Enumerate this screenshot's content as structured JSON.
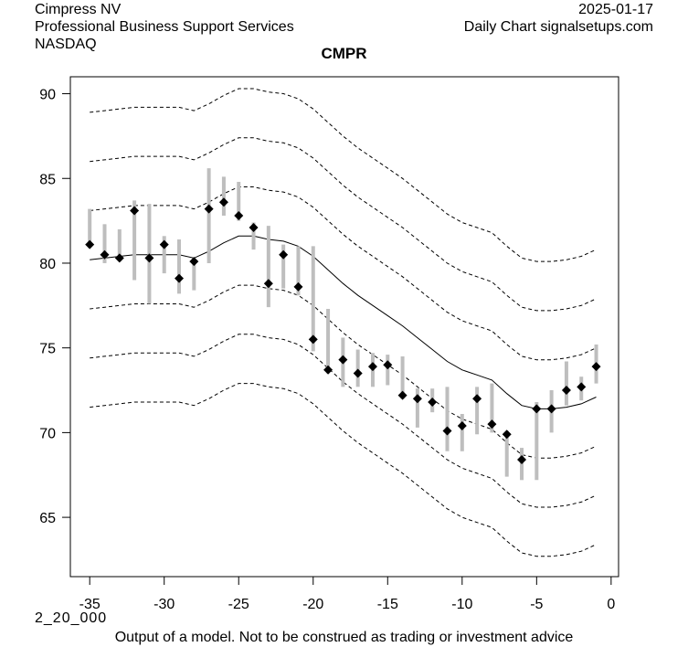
{
  "header": {
    "company": "Cimpress NV",
    "industry": "Professional Business Support Services",
    "exchange": "NASDAQ",
    "date": "2025-01-17",
    "source": "Daily Chart signalsetups.com"
  },
  "footer": {
    "code": "2_20_000",
    "disclaimer": "Output of a model. Not to be construed as trading or investment advice"
  },
  "colors": {
    "bar": "#bebebe",
    "marker": "#000000",
    "line": "#000000"
  },
  "chart_data": {
    "type": "line",
    "title": "CMPR",
    "xlabel": "",
    "ylabel": "",
    "xlim": [
      -36.3,
      0.5
    ],
    "ylim": [
      61.5,
      91.0
    ],
    "xticks": [
      -35,
      -30,
      -25,
      -20,
      -15,
      -10,
      -5,
      0
    ],
    "yticks": [
      65,
      70,
      75,
      80,
      85,
      90
    ],
    "grid": false,
    "legend": "none",
    "price_bars": {
      "x": [
        -35,
        -34,
        -33,
        -32,
        -31,
        -30,
        -29,
        -28,
        -27,
        -26,
        -25,
        -24,
        -23,
        -22,
        -21,
        -20,
        -19,
        -18,
        -17,
        -16,
        -15,
        -14,
        -13,
        -12,
        -11,
        -10,
        -9,
        -8,
        -7,
        -6,
        -5,
        -4,
        -3,
        -2,
        -1
      ],
      "high": [
        83.2,
        82.3,
        82.0,
        83.7,
        83.5,
        81.6,
        81.4,
        80.2,
        85.6,
        85.1,
        84.8,
        82.4,
        82.2,
        81.1,
        81.0,
        81.0,
        77.3,
        75.6,
        74.9,
        74.7,
        74.6,
        74.5,
        72.6,
        72.6,
        72.7,
        71.1,
        72.7,
        72.9,
        70.1,
        69.1,
        71.8,
        72.5,
        74.2,
        73.3,
        75.2
      ],
      "low": [
        80.9,
        80.0,
        80.1,
        79.0,
        77.6,
        79.4,
        78.2,
        78.4,
        80.0,
        82.8,
        82.5,
        80.8,
        77.4,
        78.5,
        78.1,
        74.8,
        73.5,
        72.7,
        72.7,
        72.7,
        72.8,
        72.0,
        70.3,
        71.2,
        68.9,
        68.9,
        69.9,
        70.0,
        67.4,
        67.2,
        67.2,
        70.0,
        71.6,
        71.9,
        72.9
      ],
      "close": [
        81.1,
        80.5,
        80.3,
        83.1,
        80.3,
        81.1,
        79.1,
        80.1,
        83.2,
        83.6,
        82.8,
        82.1,
        78.8,
        80.5,
        78.6,
        75.5,
        73.7,
        74.3,
        73.5,
        73.9,
        74.0,
        72.2,
        72.0,
        71.8,
        70.1,
        70.4,
        72.0,
        70.5,
        69.9,
        68.4,
        71.4,
        71.4,
        72.5,
        72.7,
        73.9
      ]
    },
    "center_line": {
      "x": [
        -35,
        -34,
        -33,
        -32,
        -31,
        -30,
        -29,
        -28,
        -27,
        -26,
        -25,
        -24,
        -23,
        -22,
        -21,
        -20,
        -19,
        -18,
        -17,
        -16,
        -15,
        -14,
        -13,
        -12,
        -11,
        -10,
        -9,
        -8,
        -7,
        -6,
        -5,
        -4,
        -3,
        -2,
        -1
      ],
      "y": [
        80.2,
        80.3,
        80.4,
        80.5,
        80.5,
        80.5,
        80.5,
        80.3,
        80.7,
        81.2,
        81.6,
        81.6,
        81.4,
        81.3,
        81.0,
        80.4,
        79.6,
        78.8,
        78.1,
        77.5,
        76.9,
        76.3,
        75.6,
        74.9,
        74.2,
        73.7,
        73.4,
        73.1,
        72.3,
        71.6,
        71.4,
        71.4,
        71.5,
        71.7,
        72.1
      ]
    },
    "band_offsets": [
      -8.7,
      -5.8,
      -2.9,
      2.9,
      5.8,
      8.7
    ],
    "band_style": "dashed"
  }
}
